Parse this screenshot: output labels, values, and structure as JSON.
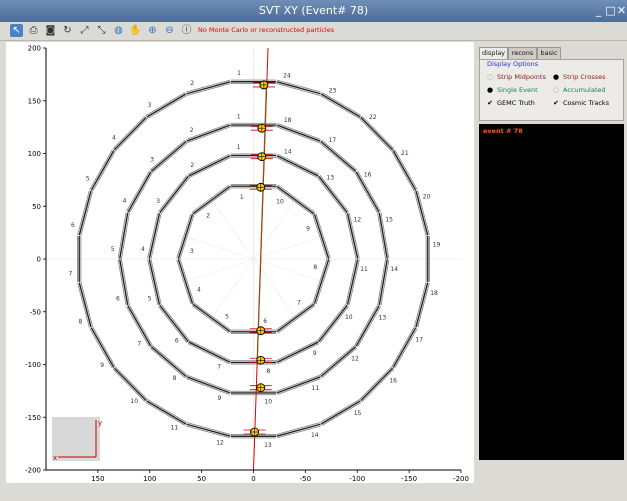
{
  "window": {
    "title": "SVT XY  (Event# 78)",
    "buttons": [
      "_",
      "□",
      "✕"
    ]
  },
  "toolbar": {
    "icons": [
      "pointer-icon",
      "print-icon",
      "camera-icon",
      "refresh-icon",
      "expand-icon",
      "contract-icon",
      "world-icon",
      "pan-hand-icon",
      "zoom-in-icon",
      "zoom-out-icon",
      "info-icon"
    ],
    "status_message": "No Monte Carlo or reconstructed particles"
  },
  "plot": {
    "x_ticks": [
      {
        "v": 150,
        "label": "150"
      },
      {
        "v": 100,
        "label": "100"
      },
      {
        "v": 50,
        "label": "50"
      },
      {
        "v": 0,
        "label": "0"
      },
      {
        "v": -50,
        "label": "-50"
      },
      {
        "v": -100,
        "label": "-100"
      },
      {
        "v": -150,
        "label": "-150"
      },
      {
        "v": -200,
        "label": "-200"
      }
    ],
    "y_ticks": [
      {
        "v": 200,
        "label": "200"
      },
      {
        "v": 150,
        "label": "150"
      },
      {
        "v": 100,
        "label": "100"
      },
      {
        "v": 50,
        "label": "50"
      },
      {
        "v": 0,
        "label": "0"
      },
      {
        "v": -50,
        "label": "-50"
      },
      {
        "v": -100,
        "label": "-100"
      },
      {
        "v": -150,
        "label": "-150"
      },
      {
        "v": -200,
        "label": "-200"
      }
    ],
    "x_range": [
      200,
      -200
    ],
    "y_range": [
      -200,
      200
    ],
    "layers": [
      {
        "region": 1,
        "sectors": 10,
        "radius": 69
      },
      {
        "region": 2,
        "sectors": 14,
        "radius": 98
      },
      {
        "region": 3,
        "sectors": 18,
        "radius": 127
      },
      {
        "region": 4,
        "sectors": 24,
        "radius": 168
      }
    ],
    "track": {
      "p1": [
        -14,
        200
      ],
      "p2": [
        0,
        -200
      ]
    },
    "hits": [
      {
        "x": -7,
        "y": 68
      },
      {
        "x": -7,
        "y": -68
      },
      {
        "x": -8,
        "y": 97
      },
      {
        "x": -7,
        "y": -96
      },
      {
        "x": -8,
        "y": 124
      },
      {
        "x": -7,
        "y": -122
      },
      {
        "x": -10,
        "y": 165
      },
      {
        "x": -1,
        "y": -164
      }
    ],
    "axis_inset": {
      "x_label": "x",
      "y_label": "y"
    }
  },
  "tabs": [
    {
      "label": "display",
      "active": true
    },
    {
      "label": "recons",
      "active": false
    },
    {
      "label": "basic",
      "active": false
    }
  ],
  "display_options": {
    "legend": "Display Options",
    "items": [
      {
        "type": "radio",
        "label": "Strip Midpoints",
        "checked": false,
        "color": "#8b1a1a"
      },
      {
        "type": "radio",
        "label": "Strip Crosses",
        "checked": true,
        "color": "#8b1a1a"
      },
      {
        "type": "radio",
        "label": "Single Event",
        "checked": true,
        "color": "#1a7a6a"
      },
      {
        "type": "radio",
        "label": "Accumulated",
        "checked": false,
        "color": "#1a7a6a"
      },
      {
        "type": "check",
        "label": "GEMC Truth",
        "checked": true,
        "color": "#000000"
      },
      {
        "type": "check",
        "label": "Cosmic Tracks",
        "checked": true,
        "color": "#000000"
      }
    ]
  },
  "event_panel": {
    "text": "event # 78"
  }
}
